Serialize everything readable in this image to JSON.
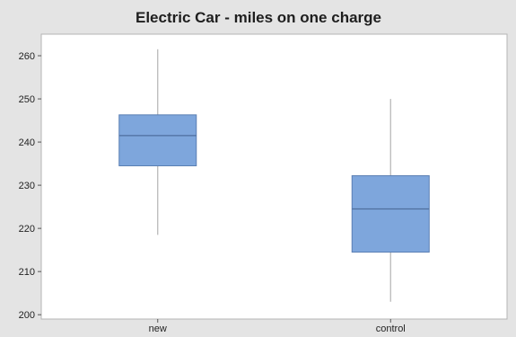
{
  "chart_data": {
    "type": "box",
    "title": "Electric Car - miles on one charge",
    "xlabel": "",
    "ylabel": "",
    "ylim": [
      199,
      265
    ],
    "yticks": [
      200,
      210,
      220,
      230,
      240,
      250,
      260
    ],
    "grid": false,
    "categories": [
      "new",
      "control"
    ],
    "boxes": [
      {
        "category": "new",
        "min": 218.5,
        "q1": 234.5,
        "median": 241.5,
        "q3": 246.3,
        "max": 261.5
      },
      {
        "category": "control",
        "min": 203,
        "q1": 214.5,
        "median": 224.5,
        "q3": 232.2,
        "max": 250
      }
    ],
    "colors": {
      "background": "#e4e4e4",
      "plot_area": "#ffffff",
      "box_fill": "#7ea6dc",
      "box_stroke": "#5a7fb3",
      "median_line": "#4f6f9e",
      "whisker": "#b4b4b4"
    }
  }
}
